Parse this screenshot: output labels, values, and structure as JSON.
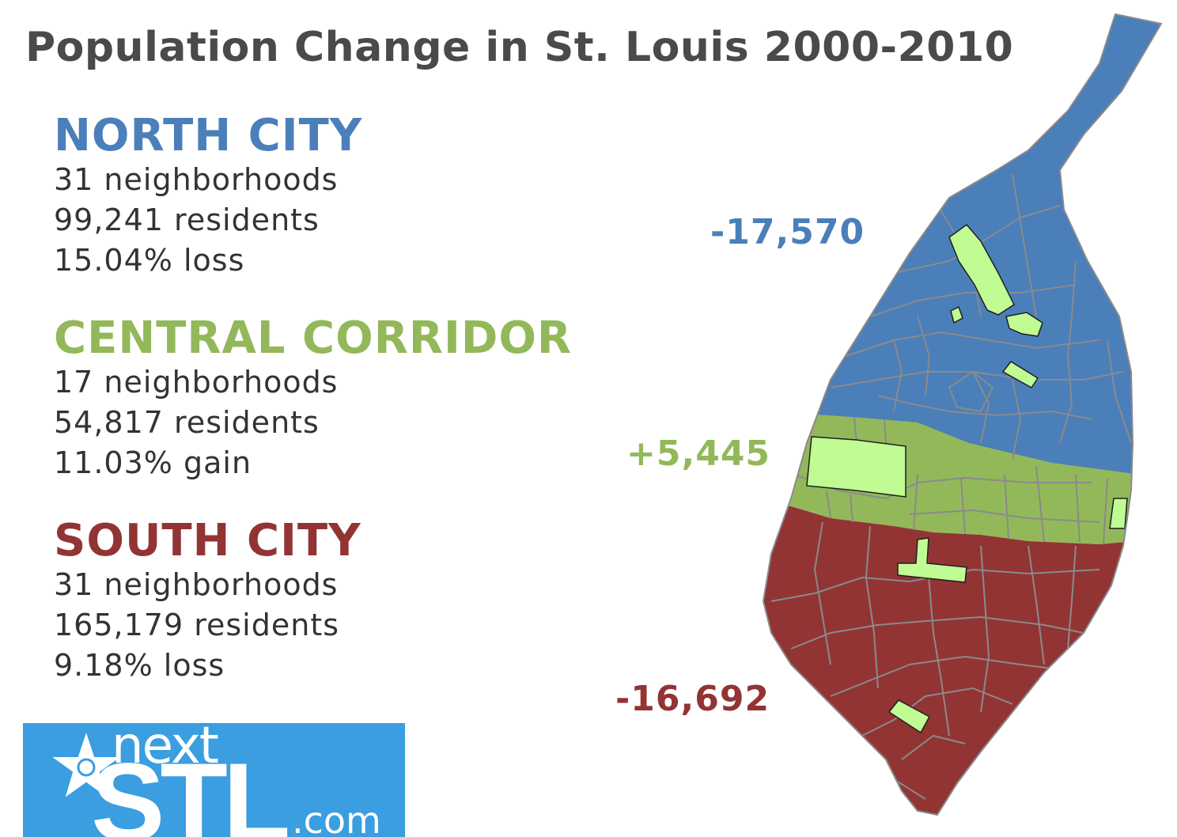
{
  "title": "Population Change in St. Louis 2000-2010",
  "colors": {
    "north": "#4a7fba",
    "central": "#93b85a",
    "south": "#923434",
    "park": "#c0fb94",
    "border": "#888888",
    "logo_bg": "#3a9ee0"
  },
  "regions": [
    {
      "name": "NORTH CITY",
      "neighborhoods": "31 neighborhoods",
      "residents": "99,241 residents",
      "change_text": "15.04% loss",
      "map_change": "-17,570"
    },
    {
      "name": "CENTRAL CORRIDOR",
      "neighborhoods": "17 neighborhoods",
      "residents": "54,817 residents",
      "change_text": "11.03% gain",
      "map_change": "+5,445"
    },
    {
      "name": "SOUTH CITY",
      "neighborhoods": "31 neighborhoods",
      "residents": "165,179 residents",
      "change_text": "9.18% loss",
      "map_change": "-16,692"
    }
  ],
  "logo": {
    "next": "next",
    "stl": "STL",
    "com": ".com"
  }
}
